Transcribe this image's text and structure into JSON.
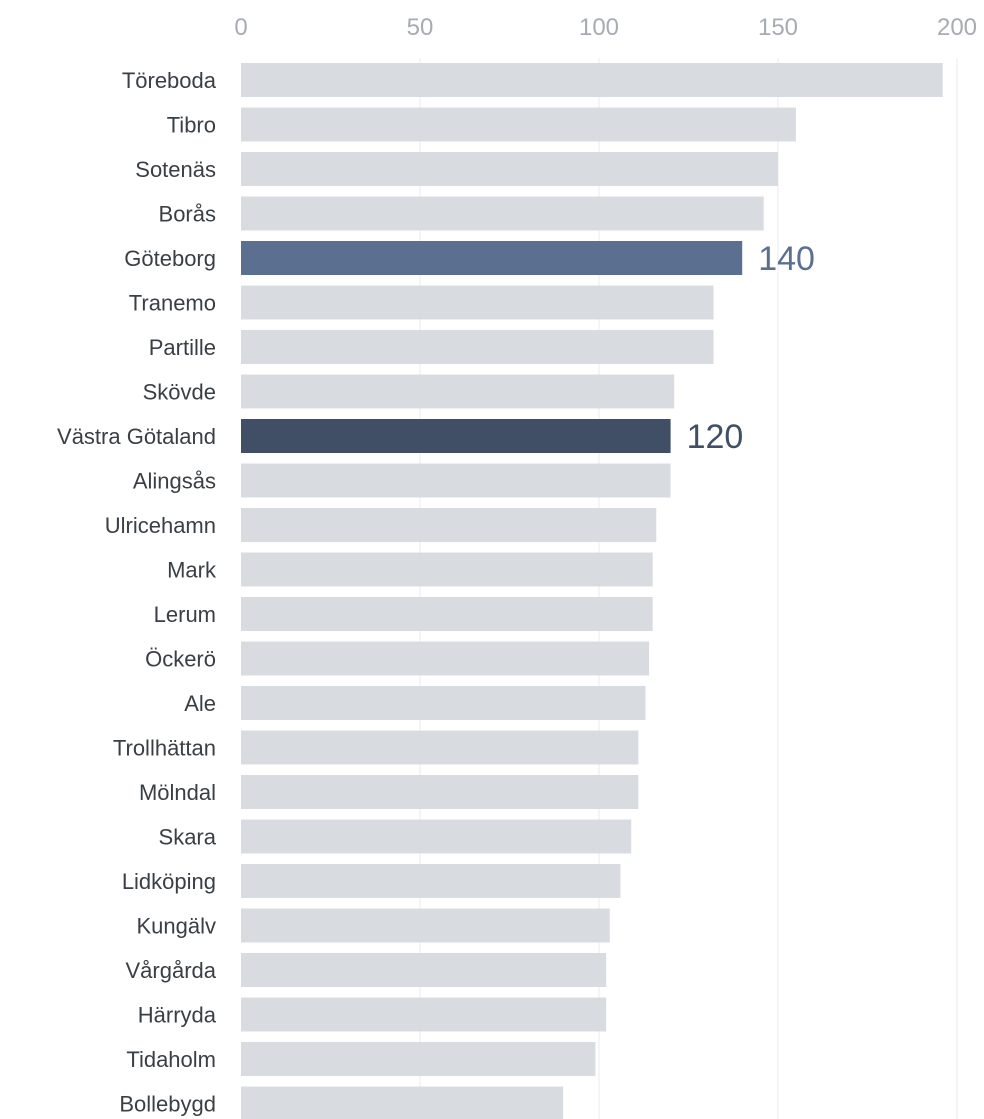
{
  "chart_data": {
    "type": "bar",
    "orientation": "horizontal",
    "title": "",
    "xlabel": "",
    "ylabel": "",
    "xlim": [
      0,
      200
    ],
    "x_ticks": [
      0,
      50,
      100,
      150,
      200
    ],
    "grid": true,
    "axis_position": "top",
    "categories": [
      "Töreboda",
      "Tibro",
      "Sotenäs",
      "Borås",
      "Göteborg",
      "Tranemo",
      "Partille",
      "Skövde",
      "Västra Götaland",
      "Alingsås",
      "Ulricehamn",
      "Mark",
      "Lerum",
      "Öckerö",
      "Ale",
      "Trollhättan",
      "Mölndal",
      "Skara",
      "Lidköping",
      "Kungälv",
      "Vårgårda",
      "Härryda",
      "Tidaholm",
      "Bollebygd"
    ],
    "values": [
      196,
      155,
      150,
      146,
      140,
      132,
      132,
      121,
      120,
      120,
      116,
      115,
      115,
      114,
      113,
      111,
      111,
      109,
      106,
      103,
      102,
      102,
      99,
      90
    ],
    "highlights": [
      {
        "category": "Göteborg",
        "label": "140",
        "color": "#5b7090"
      },
      {
        "category": "Västra Götaland",
        "label": "120",
        "color": "#404f66"
      }
    ],
    "colors": {
      "default_bar": "#d8dce0",
      "tick_text": "#a7acb3",
      "category_text": "#3a3f45",
      "grid": "#e9ebee"
    }
  }
}
